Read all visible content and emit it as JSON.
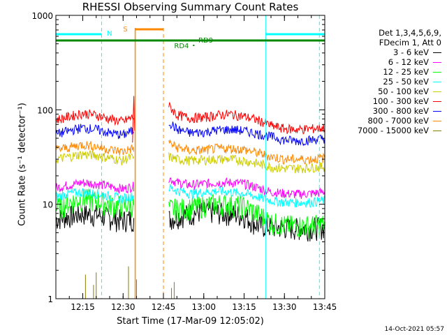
{
  "chart_data": {
    "type": "line",
    "title": "RHESSI Observing Summary Count Rates",
    "xlabel": "Start Time (17-Mar-09 12:05:02)",
    "ylabel": "Count Rate (s⁻¹ detector⁻¹)",
    "yscale": "log",
    "ylim": [
      1,
      1000
    ],
    "xlim_minutes": [
      0,
      100
    ],
    "x_tick_labels": [
      "12:15",
      "12:30",
      "12:45",
      "13:00",
      "13:15",
      "13:30",
      "13:45"
    ],
    "x_tick_minutes": [
      10,
      25,
      40,
      55,
      70,
      85,
      100
    ],
    "y_tick_labels": [
      "1",
      "10",
      "100",
      "1000"
    ],
    "y_tick_values": [
      1,
      10,
      100,
      1000
    ],
    "legend_header": [
      "Det 1,3,4,5,6,9,",
      "FDecim 1, Att 0"
    ],
    "flag_labels": {
      "N": "N",
      "S": "S",
      "RD4": "RD4",
      "RD9": "RD9"
    },
    "gap_minutes": [
      29,
      42
    ],
    "series": [
      {
        "name": "3 - 6 keV",
        "color": "#000000",
        "x": [
          0,
          5,
          10,
          15,
          20,
          25,
          27,
          42,
          45,
          50,
          55,
          60,
          65,
          70,
          75,
          80,
          85,
          90,
          95,
          100
        ],
        "y": [
          7,
          7.5,
          8,
          7.8,
          7.2,
          6.8,
          7,
          7,
          7.5,
          8,
          8.5,
          8.2,
          8,
          7.6,
          6,
          5.8,
          5.7,
          5.6,
          5.6,
          5.8
        ]
      },
      {
        "name": "6 - 12 keV",
        "color": "#ff00ff",
        "x": [
          0,
          5,
          10,
          15,
          20,
          25,
          27,
          42,
          45,
          50,
          55,
          60,
          65,
          70,
          75,
          80,
          85,
          90,
          95,
          100
        ],
        "y": [
          15,
          16,
          17,
          16.5,
          15.5,
          14.5,
          15,
          19,
          17,
          16,
          16.5,
          17,
          17,
          16.5,
          15,
          13.5,
          13,
          12.8,
          13,
          13.5
        ]
      },
      {
        "name": "12 - 25 keV",
        "color": "#00ff00",
        "x": [
          0,
          5,
          10,
          15,
          20,
          25,
          27,
          42,
          45,
          50,
          55,
          60,
          65,
          70,
          75,
          80,
          85,
          90,
          95,
          100
        ],
        "y": [
          9,
          10.5,
          11.5,
          11,
          10,
          9.5,
          10,
          9,
          9,
          9.2,
          9.8,
          10.2,
          10,
          9.5,
          8,
          6.5,
          6,
          6,
          6,
          6.2
        ]
      },
      {
        "name": "25 - 50 keV",
        "color": "#00ffff",
        "x": [
          0,
          5,
          10,
          15,
          20,
          25,
          27,
          42,
          45,
          50,
          55,
          60,
          65,
          70,
          75,
          80,
          85,
          90,
          95,
          100
        ],
        "y": [
          12,
          13,
          13.5,
          13,
          12.2,
          11.5,
          12,
          15,
          14,
          13,
          13.5,
          13.8,
          13.5,
          13,
          12,
          11,
          10.5,
          10.5,
          10.5,
          11
        ]
      },
      {
        "name": "50 - 100 keV",
        "color": "#cccc00",
        "x": [
          0,
          5,
          10,
          15,
          20,
          25,
          27,
          42,
          45,
          50,
          55,
          60,
          65,
          70,
          75,
          80,
          85,
          90,
          95,
          100
        ],
        "y": [
          30,
          32,
          34,
          33,
          31,
          29,
          31,
          32,
          30,
          29,
          29.5,
          30,
          30,
          29,
          27,
          25,
          24,
          24,
          24.5,
          25
        ]
      },
      {
        "name": "100 - 300 keV",
        "color": "#ff0000",
        "x": [
          0,
          5,
          10,
          15,
          20,
          25,
          27,
          42,
          45,
          50,
          55,
          60,
          65,
          70,
          75,
          80,
          85,
          90,
          95,
          100
        ],
        "y": [
          78,
          85,
          92,
          88,
          80,
          75,
          80,
          110,
          88,
          82,
          83,
          88,
          90,
          85,
          78,
          68,
          63,
          62,
          63,
          65
        ]
      },
      {
        "name": "300 - 800 keV",
        "color": "#0000ff",
        "x": [
          0,
          5,
          10,
          15,
          20,
          25,
          27,
          42,
          45,
          50,
          55,
          60,
          65,
          70,
          75,
          80,
          85,
          90,
          95,
          100
        ],
        "y": [
          55,
          60,
          65,
          62,
          57,
          54,
          58,
          75,
          62,
          57,
          58,
          61,
          62,
          60,
          56,
          52,
          48,
          47,
          48,
          50
        ]
      },
      {
        "name": "800 - 7000 keV",
        "color": "#ff8800",
        "x": [
          0,
          5,
          10,
          15,
          20,
          25,
          27,
          42,
          45,
          50,
          55,
          60,
          65,
          70,
          75,
          80,
          85,
          90,
          95,
          100
        ],
        "y": [
          38,
          40,
          43,
          41,
          38,
          36,
          38,
          45,
          40,
          37,
          37.5,
          39,
          39,
          38,
          35,
          32,
          30,
          30,
          30,
          31
        ]
      },
      {
        "name": "7000 - 15000 keV",
        "color": "#8b7d00",
        "x": [
          0,
          100
        ],
        "y": [
          1,
          1
        ]
      }
    ],
    "annotations": [
      {
        "label": "N",
        "color": "#00ffff",
        "position": "top-left"
      },
      {
        "label": "S",
        "color": "#ff8800",
        "position": "top-center"
      },
      {
        "label": "RD4",
        "color": "#008800",
        "position": "top"
      },
      {
        "label": "RD9",
        "color": "#008800",
        "position": "top"
      }
    ],
    "legend_position": "right",
    "grid": false
  },
  "footer_timestamp": "14-Oct-2021 05:57"
}
